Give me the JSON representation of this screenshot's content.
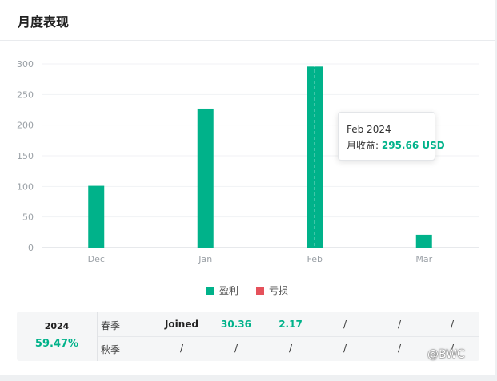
{
  "card": {
    "title": "月度表现"
  },
  "chart_data": {
    "type": "bar",
    "categories": [
      "Dec",
      "Jan",
      "Feb",
      "Mar"
    ],
    "series": [
      {
        "name": "盈利",
        "values": [
          101,
          227,
          295.66,
          21
        ],
        "color": "#00b28a"
      },
      {
        "name": "亏损",
        "values": [
          0,
          0,
          0,
          0
        ],
        "color": "#e5515b"
      }
    ],
    "ylim": [
      0,
      300
    ],
    "yticks": [
      0,
      50,
      100,
      150,
      200,
      250,
      300
    ],
    "grid": true,
    "legend": "bottom-center",
    "highlighted_category": "Feb"
  },
  "tooltip": {
    "title": "Feb 2024",
    "label": "月收益:",
    "value": "295.66 USD"
  },
  "legend": {
    "profit_label": "盈利",
    "loss_label": "亏损"
  },
  "summary": {
    "year": "2024",
    "percent": "59.47%",
    "rows": [
      {
        "label": "春季",
        "cells": [
          "Joined",
          "30.36",
          "2.17",
          "/",
          "/",
          "/"
        ]
      },
      {
        "label": "秋季",
        "cells": [
          "/",
          "/",
          "/",
          "/",
          "/",
          "/"
        ]
      }
    ]
  },
  "watermark": "@BWC"
}
